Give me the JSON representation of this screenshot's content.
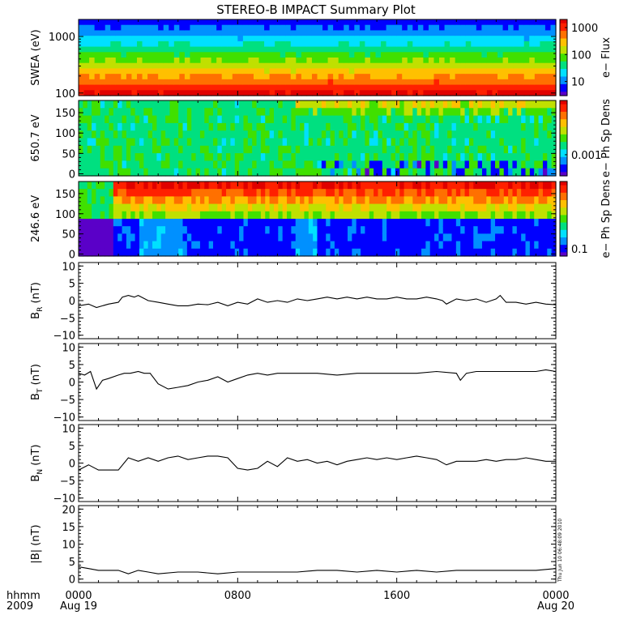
{
  "title": "STEREO-B IMPACT Summary Plot",
  "timestamp": "Thu Jun 10 06:48:09 2010",
  "time_axis": {
    "row1_label": "hhmm",
    "row2_label": "2009",
    "ticks": [
      {
        "t": 0,
        "top": "0000",
        "bottom": "Aug 19"
      },
      {
        "t": 8,
        "top": "0800",
        "bottom": ""
      },
      {
        "t": 16,
        "top": "1600",
        "bottom": ""
      },
      {
        "t": 24,
        "top": "0000",
        "bottom": "Aug 20"
      }
    ],
    "minor_ticks_per_major": 8,
    "range_hours": [
      0,
      24
    ]
  },
  "colors": {
    "palette": [
      "#5a00c8",
      "#0000ff",
      "#0090ff",
      "#00e0ff",
      "#00e080",
      "#40e000",
      "#c0e000",
      "#ffc000",
      "#ff7000",
      "#ff2000",
      "#e00000"
    ]
  },
  "chart_data": [
    {
      "id": "swea",
      "type": "heatmap",
      "ylabel": "SWEA (eV)",
      "ylim": [
        90,
        2000
      ],
      "yscale": "log",
      "yticks": [
        100,
        1000
      ],
      "ytick_labels": [
        "100",
        "1000"
      ],
      "colorbar": {
        "label": "e− Flux",
        "scale": "log",
        "range": [
          3,
          2000
        ],
        "ticks": [
          10,
          100,
          1000
        ],
        "tick_labels": [
          "10",
          "100",
          "1000"
        ]
      },
      "description_values": {
        "flux_at_100eV": 1500,
        "flux_at_400eV": 80,
        "flux_at_1000eV": 15,
        "flux_at_2000eV": 4
      }
    },
    {
      "id": "pad650",
      "type": "heatmap",
      "ylabel": "650.7 eV",
      "ylim": [
        -5,
        180
      ],
      "yticks": [
        0,
        50,
        100,
        150
      ],
      "ytick_labels": [
        "0",
        "50",
        "100",
        "150"
      ],
      "colorbar": {
        "label": "e− Ph Sp Dens",
        "scale": "log",
        "ticks": [
          0.001
        ],
        "tick_labels": [
          "0.001"
        ]
      }
    },
    {
      "id": "pad246",
      "type": "heatmap",
      "ylabel": "246.6 eV",
      "ylim": [
        -5,
        180
      ],
      "yticks": [
        0,
        50,
        100,
        150
      ],
      "ytick_labels": [
        "0",
        "50",
        "100",
        "150"
      ],
      "colorbar": {
        "label": "e− Ph Sp Dens",
        "scale": "log",
        "ticks": [
          0.1
        ],
        "tick_labels": [
          "0.1"
        ]
      }
    },
    {
      "id": "br",
      "type": "line",
      "ylabel": "B",
      "ylabel_sub": "R",
      "ylabel_unit": " (nT)",
      "ylim": [
        -11,
        11
      ],
      "yticks": [
        -10,
        -5,
        0,
        5,
        10
      ],
      "ytick_labels": [
        "−10",
        "−5",
        "0",
        "5",
        "10"
      ],
      "x": [
        0,
        0.5,
        0.9,
        1.2,
        1.5,
        2.0,
        2.2,
        2.5,
        2.8,
        3.0,
        3.5,
        4.0,
        4.5,
        5.0,
        5.5,
        6.0,
        6.5,
        7.0,
        7.5,
        8.0,
        8.5,
        9.0,
        9.5,
        10.0,
        10.5,
        11.0,
        11.5,
        12.0,
        12.5,
        13.0,
        13.5,
        14.0,
        14.5,
        15.0,
        15.5,
        16.0,
        16.5,
        17.0,
        17.5,
        18.0,
        18.3,
        18.5,
        19.0,
        19.5,
        20.0,
        20.5,
        21.0,
        21.2,
        21.5,
        22.0,
        22.5,
        23.0,
        23.5,
        24.0
      ],
      "y": [
        -1.5,
        -1.0,
        -2.0,
        -1.5,
        -1.0,
        -0.5,
        1.0,
        1.5,
        1.0,
        1.5,
        0.0,
        -0.5,
        -1.0,
        -1.5,
        -1.5,
        -1.0,
        -1.2,
        -0.5,
        -1.5,
        -0.5,
        -1.0,
        0.5,
        -0.5,
        0.0,
        -0.5,
        0.5,
        0.0,
        0.5,
        1.0,
        0.5,
        1.0,
        0.5,
        1.0,
        0.5,
        0.5,
        1.0,
        0.5,
        0.5,
        1.0,
        0.5,
        0.0,
        -1.0,
        0.5,
        0.0,
        0.5,
        -0.5,
        0.5,
        1.5,
        -0.5,
        -0.5,
        -1.0,
        -0.5,
        -1.0,
        -1.2
      ]
    },
    {
      "id": "bt",
      "type": "line",
      "ylabel": "B",
      "ylabel_sub": "T",
      "ylabel_unit": " (nT)",
      "ylim": [
        -11,
        11
      ],
      "yticks": [
        -10,
        -5,
        0,
        5,
        10
      ],
      "ytick_labels": [
        "−10",
        "−5",
        "0",
        "5",
        "10"
      ],
      "x": [
        0,
        0.3,
        0.6,
        0.9,
        1.2,
        1.5,
        2.0,
        2.3,
        2.6,
        3.0,
        3.3,
        3.6,
        4.0,
        4.5,
        5.0,
        5.5,
        6.0,
        6.5,
        7.0,
        7.5,
        8.0,
        8.5,
        9.0,
        9.5,
        10.0,
        11.0,
        12.0,
        13.0,
        14.0,
        15.0,
        16.0,
        17.0,
        18.0,
        19.0,
        19.2,
        19.5,
        20.0,
        21.0,
        22.0,
        23.0,
        23.5,
        24.0
      ],
      "y": [
        2.5,
        2.0,
        3.0,
        -2.0,
        0.5,
        1.0,
        2.0,
        2.5,
        2.5,
        3.0,
        2.5,
        2.5,
        -0.5,
        -2.0,
        -1.5,
        -1.0,
        0.0,
        0.5,
        1.5,
        0.0,
        1.0,
        2.0,
        2.5,
        2.0,
        2.5,
        2.5,
        2.5,
        2.0,
        2.5,
        2.5,
        2.5,
        2.5,
        3.0,
        2.5,
        0.5,
        2.5,
        3.0,
        3.0,
        3.0,
        3.0,
        3.5,
        3.0
      ]
    },
    {
      "id": "bn",
      "type": "line",
      "ylabel": "B",
      "ylabel_sub": "N",
      "ylabel_unit": " (nT)",
      "ylim": [
        -11,
        11
      ],
      "yticks": [
        -10,
        -5,
        0,
        5,
        10
      ],
      "ytick_labels": [
        "−10",
        "−5",
        "0",
        "5",
        "10"
      ],
      "x": [
        0,
        0.5,
        1.0,
        1.5,
        2.0,
        2.5,
        3.0,
        3.5,
        4.0,
        4.5,
        5.0,
        5.5,
        6.0,
        6.5,
        7.0,
        7.5,
        8.0,
        8.5,
        9.0,
        9.5,
        10.0,
        10.5,
        11.0,
        11.5,
        12.0,
        12.5,
        13.0,
        13.5,
        14.0,
        14.5,
        15.0,
        15.5,
        16.0,
        16.5,
        17.0,
        17.5,
        18.0,
        18.5,
        19.0,
        19.5,
        20.0,
        20.5,
        21.0,
        21.5,
        22.0,
        22.5,
        23.0,
        23.5,
        24.0
      ],
      "y": [
        -2.0,
        -0.5,
        -2.0,
        -2.0,
        -2.0,
        1.5,
        0.5,
        1.5,
        0.5,
        1.5,
        2.0,
        1.0,
        1.5,
        2.0,
        2.0,
        1.5,
        -1.5,
        -2.0,
        -1.5,
        0.5,
        -1.0,
        1.5,
        0.5,
        1.0,
        0.0,
        0.5,
        -0.5,
        0.5,
        1.0,
        1.5,
        1.0,
        1.5,
        1.0,
        1.5,
        2.0,
        1.5,
        1.0,
        -0.5,
        0.5,
        0.5,
        0.5,
        1.0,
        0.5,
        1.0,
        1.0,
        1.5,
        1.0,
        0.5,
        0.5
      ]
    },
    {
      "id": "bmag",
      "type": "line",
      "ylabel": "|B| (nT)",
      "ylim": [
        -1,
        21
      ],
      "yticks": [
        0,
        5,
        10,
        15,
        20
      ],
      "ytick_labels": [
        "0",
        "5",
        "10",
        "15",
        "20"
      ],
      "x": [
        0,
        0.5,
        1.0,
        2.0,
        2.5,
        3.0,
        3.5,
        4.0,
        5.0,
        6.0,
        7.0,
        8.0,
        9.0,
        10.0,
        11.0,
        12.0,
        13.0,
        14.0,
        15.0,
        16.0,
        17.0,
        18.0,
        19.0,
        20.0,
        21.0,
        22.0,
        23.0,
        24.0
      ],
      "y": [
        3.5,
        3.0,
        2.5,
        2.5,
        1.5,
        2.5,
        2.0,
        1.5,
        2.0,
        2.0,
        1.5,
        2.0,
        2.0,
        2.0,
        2.0,
        2.5,
        2.5,
        2.0,
        2.5,
        2.0,
        2.5,
        2.0,
        2.5,
        2.5,
        2.5,
        2.5,
        2.5,
        3.0
      ]
    }
  ]
}
